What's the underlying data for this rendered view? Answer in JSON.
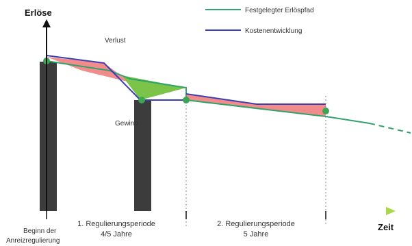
{
  "axes": {
    "y_label": "Erlöse",
    "x_label": "Zeit"
  },
  "legend": {
    "items": [
      {
        "label": "Festgelegter Erlöspfad",
        "color": "#2fa36b"
      },
      {
        "label": "Kostenentwicklung",
        "color": "#3b3fb3"
      }
    ]
  },
  "annotations": {
    "verlust": "Verlust",
    "gewinn": "Gewinn"
  },
  "bottom_labels": {
    "start_line1": "Beginn der",
    "start_line2": "Anreizregulierung",
    "period1_line1": "1. Regulierungsperiode",
    "period1_line2": "4/5 Jahre",
    "period2_line1": "2. Regulierungsperiode",
    "period2_line2": "5 Jahre"
  },
  "colors": {
    "revenue_line": "#2fa36b",
    "cost_line": "#3b3fb3",
    "loss_fill": "#f28c8c",
    "gain_fill": "#7cc34a",
    "bar": "#3c3c3c",
    "marker": "#3aa655",
    "axis": "#111111",
    "timeline_start": "#3b6fd8",
    "timeline_mid": "#c04fd8",
    "timeline_end": "#a8d84a"
  }
}
